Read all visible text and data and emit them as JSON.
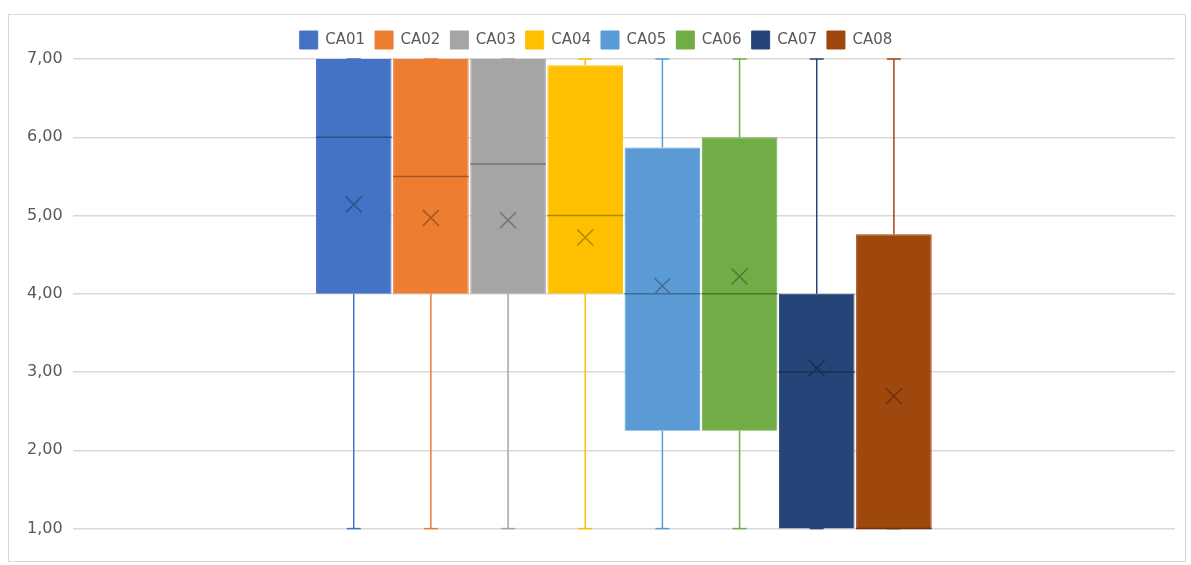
{
  "chart_data": {
    "type": "box",
    "categories": [
      null
    ],
    "series": [
      {
        "name": "CA01",
        "color": "#4472c4",
        "boxes": [
          {
            "low": 1,
            "q1": 4,
            "median": 6,
            "q3": 7,
            "high": 7,
            "mean": 5.14
          }
        ]
      },
      {
        "name": "CA02",
        "color": "#ed7d31",
        "boxes": [
          {
            "low": 1,
            "q1": 4,
            "median": 5.5,
            "q3": 7,
            "high": 7,
            "mean": 4.97
          }
        ]
      },
      {
        "name": "CA03",
        "color": "#a5a5a5",
        "boxes": [
          {
            "low": 1,
            "q1": 4,
            "median": 5.66,
            "q3": 7,
            "high": 7,
            "mean": 4.94
          }
        ]
      },
      {
        "name": "CA04",
        "color": "#ffc000",
        "boxes": [
          {
            "low": 1,
            "q1": 4,
            "median": 5,
            "q3": 6.92,
            "high": 7,
            "mean": 4.72
          }
        ]
      },
      {
        "name": "CA05",
        "color": "#5b9bd5",
        "boxes": [
          {
            "low": 1,
            "q1": 2.25,
            "median": 4,
            "q3": 5.87,
            "high": 7,
            "mean": 4.1
          }
        ]
      },
      {
        "name": "CA06",
        "color": "#70ad47",
        "boxes": [
          {
            "low": 1,
            "q1": 2.25,
            "median": 4,
            "q3": 6,
            "high": 7,
            "mean": 4.22
          }
        ]
      },
      {
        "name": "CA07",
        "color": "#264478",
        "boxes": [
          {
            "low": 1,
            "q1": 1,
            "median": 3,
            "q3": 4,
            "high": 7,
            "mean": 3.05
          }
        ]
      },
      {
        "name": "CA08",
        "color": "#9e480e",
        "boxes": [
          {
            "low": 1,
            "q1": 1,
            "median": 1,
            "q3": 4.76,
            "high": 7,
            "mean": 2.69
          }
        ]
      }
    ],
    "ylim": [
      1,
      7
    ],
    "yticks": [
      {
        "value": 1,
        "label": "1,00"
      },
      {
        "value": 2,
        "label": "2,00"
      },
      {
        "value": 3,
        "label": "3,00"
      },
      {
        "value": 4,
        "label": "4,00"
      },
      {
        "value": 5,
        "label": "5,00"
      },
      {
        "value": 6,
        "label": "6,00"
      },
      {
        "value": 7,
        "label": "7,00"
      }
    ],
    "grid": "y",
    "legend": "top",
    "marker": "cross"
  }
}
